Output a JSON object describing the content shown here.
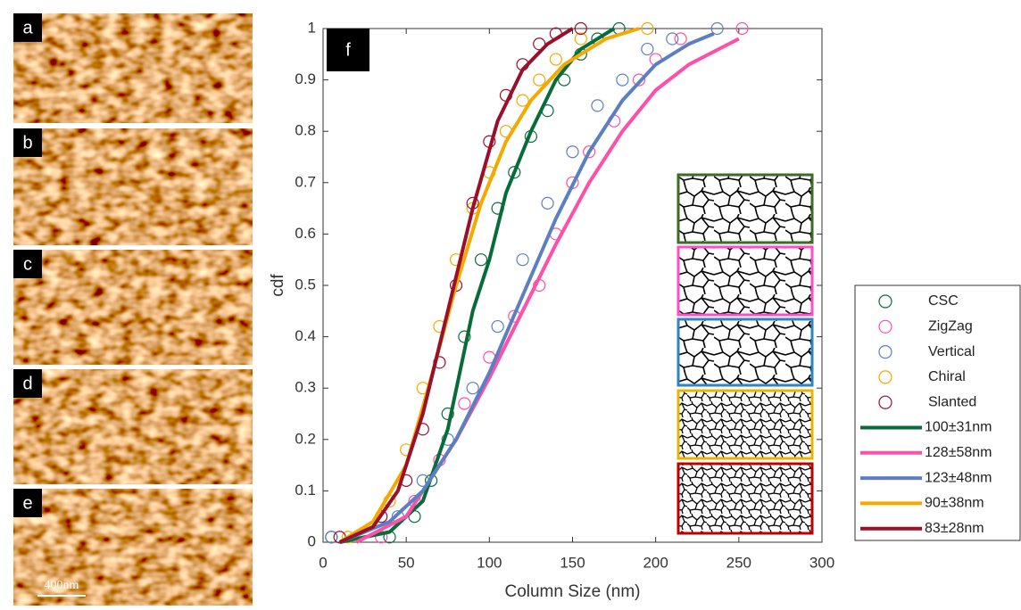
{
  "panels": {
    "labels": [
      "a",
      "b",
      "c",
      "d",
      "e"
    ],
    "scale_bar": "400nm"
  },
  "chart_data": {
    "type": "line",
    "panel_label": "f",
    "xlabel": "Column Size (nm)",
    "ylabel": "cdf",
    "xlim": [
      0,
      300
    ],
    "ylim": [
      0,
      1
    ],
    "xticks": [
      0,
      50,
      100,
      150,
      200,
      250,
      300
    ],
    "yticks": [
      0,
      0.1,
      0.2,
      0.3,
      0.4,
      0.5,
      0.6,
      0.7,
      0.8,
      0.9,
      1
    ],
    "series": [
      {
        "name": "CSC",
        "mode": "markers",
        "color": "#0a6b3a",
        "x": [
          5,
          40,
          55,
          65,
          75,
          85,
          95,
          105,
          115,
          125,
          135,
          145,
          155,
          165,
          178
        ],
        "values": [
          0.01,
          0.01,
          0.05,
          0.12,
          0.25,
          0.4,
          0.55,
          0.65,
          0.72,
          0.79,
          0.84,
          0.9,
          0.95,
          0.98,
          1
        ]
      },
      {
        "name": "ZigZag",
        "mode": "markers",
        "color": "#ff4fa8",
        "x": [
          35,
          55,
          70,
          85,
          100,
          115,
          130,
          140,
          150,
          160,
          175,
          190,
          200,
          215,
          252
        ],
        "values": [
          0.01,
          0.08,
          0.16,
          0.27,
          0.36,
          0.44,
          0.5,
          0.6,
          0.7,
          0.76,
          0.82,
          0.9,
          0.94,
          0.98,
          1
        ]
      },
      {
        "name": "Vertical",
        "mode": "markers",
        "color": "#5b7fc0",
        "x": [
          5,
          45,
          60,
          75,
          90,
          105,
          120,
          135,
          150,
          165,
          180,
          195,
          210,
          237
        ],
        "values": [
          0.01,
          0.05,
          0.12,
          0.2,
          0.3,
          0.42,
          0.55,
          0.66,
          0.76,
          0.85,
          0.9,
          0.96,
          0.98,
          1
        ]
      },
      {
        "name": "Chiral",
        "mode": "markers",
        "color": "#f5a800",
        "x": [
          15,
          40,
          50,
          60,
          70,
          80,
          90,
          100,
          110,
          120,
          130,
          140,
          155,
          195
        ],
        "values": [
          0.01,
          0.08,
          0.18,
          0.3,
          0.42,
          0.55,
          0.65,
          0.72,
          0.8,
          0.86,
          0.9,
          0.94,
          0.98,
          1
        ]
      },
      {
        "name": "Slanted",
        "mode": "markers",
        "color": "#9a0f2a",
        "x": [
          10,
          35,
          50,
          60,
          70,
          80,
          90,
          100,
          110,
          120,
          130,
          140,
          155
        ],
        "values": [
          0.01,
          0.05,
          0.12,
          0.22,
          0.35,
          0.5,
          0.66,
          0.78,
          0.87,
          0.93,
          0.97,
          0.99,
          1
        ]
      },
      {
        "name": "100±31nm",
        "mode": "line",
        "color": "#0a6b3a",
        "x": [
          10,
          40,
          60,
          75,
          90,
          100,
          110,
          125,
          140,
          155,
          175
        ],
        "values": [
          0,
          0.02,
          0.08,
          0.22,
          0.45,
          0.55,
          0.68,
          0.8,
          0.9,
          0.96,
          1
        ]
      },
      {
        "name": "128±58nm",
        "mode": "line",
        "color": "#ff4fa8",
        "x": [
          20,
          50,
          80,
          100,
          120,
          140,
          160,
          180,
          200,
          220,
          250
        ],
        "values": [
          0,
          0.05,
          0.2,
          0.32,
          0.45,
          0.58,
          0.7,
          0.8,
          0.88,
          0.93,
          0.98
        ]
      },
      {
        "name": "123±48nm",
        "mode": "line",
        "color": "#5b7fc0",
        "x": [
          10,
          40,
          60,
          80,
          100,
          120,
          140,
          160,
          180,
          200,
          220,
          235
        ],
        "values": [
          0,
          0.04,
          0.1,
          0.2,
          0.33,
          0.48,
          0.63,
          0.76,
          0.86,
          0.93,
          0.97,
          0.99
        ]
      },
      {
        "name": "90±38nm",
        "mode": "line",
        "color": "#f5a800",
        "x": [
          10,
          30,
          50,
          65,
          80,
          95,
          110,
          125,
          145,
          170,
          190
        ],
        "values": [
          0,
          0.04,
          0.15,
          0.32,
          0.5,
          0.66,
          0.78,
          0.86,
          0.93,
          0.98,
          1
        ]
      },
      {
        "name": "83±28nm",
        "mode": "line",
        "color": "#9a0f2a",
        "x": [
          10,
          30,
          45,
          60,
          75,
          90,
          105,
          120,
          135,
          150
        ],
        "values": [
          0,
          0.03,
          0.1,
          0.25,
          0.45,
          0.65,
          0.82,
          0.92,
          0.97,
          1
        ]
      }
    ]
  }
}
